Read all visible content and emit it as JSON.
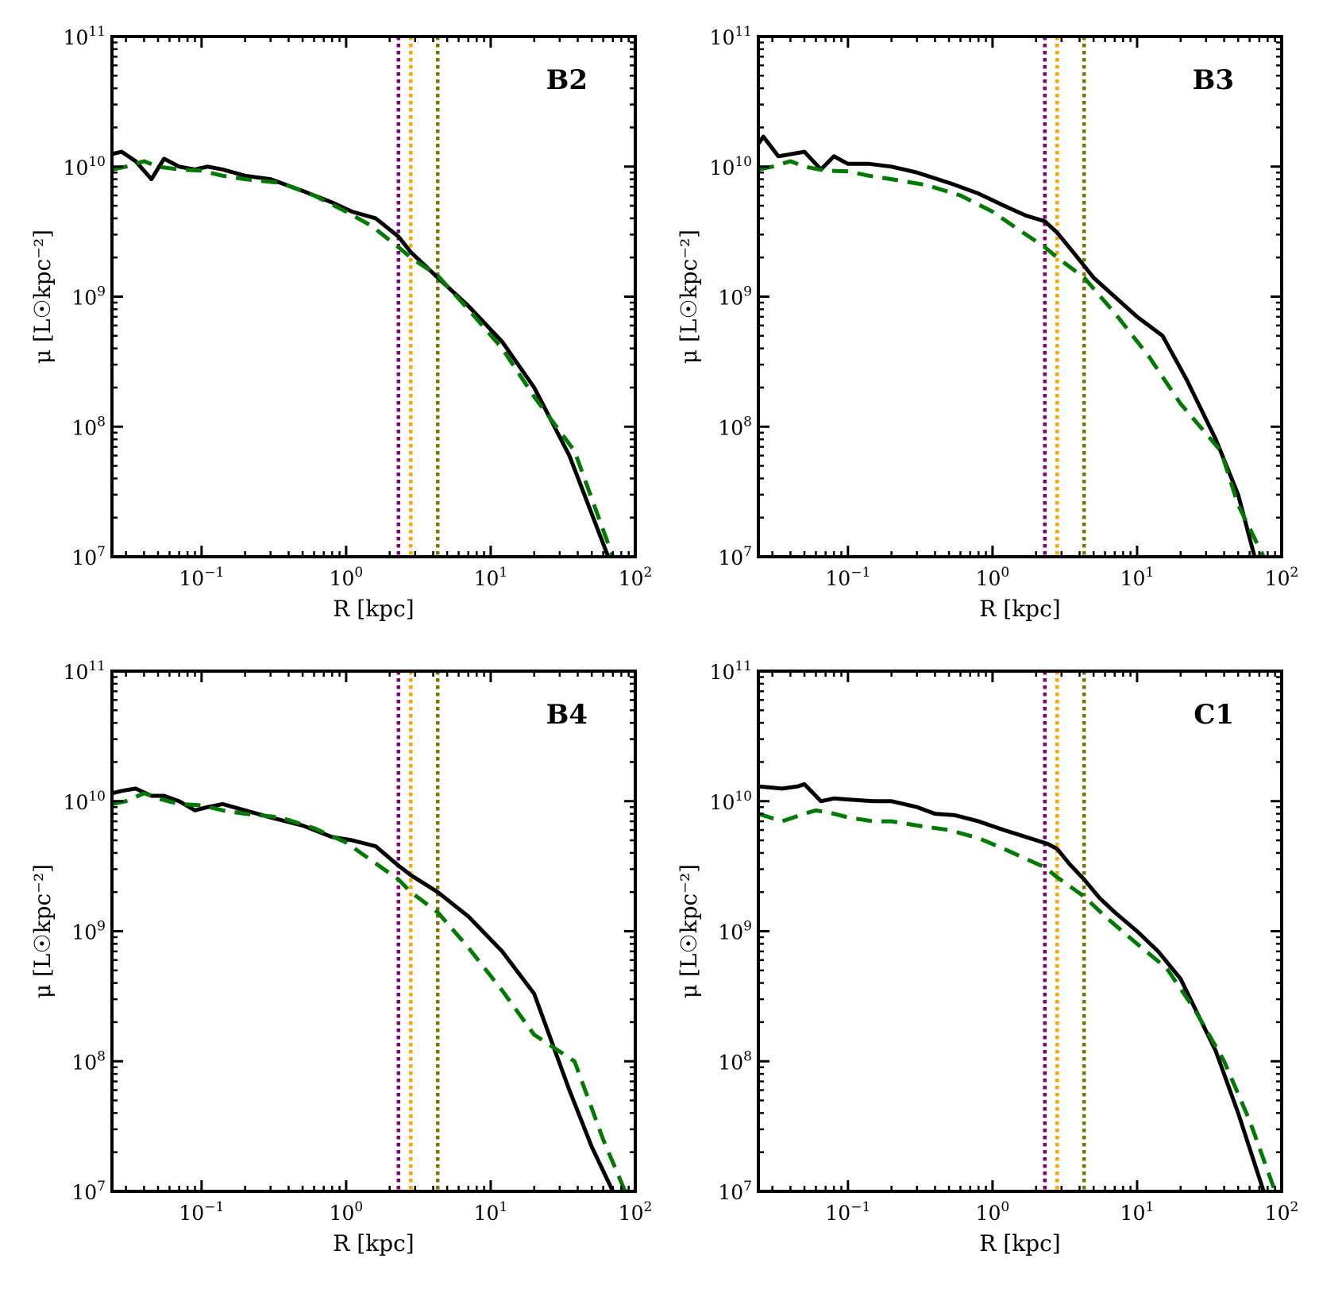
{
  "figure": {
    "colors": {
      "measured": "#000000",
      "model": "#007a00",
      "vline_1": "#800080",
      "vline_2": "#ffa500",
      "vline_3": "#7a7400"
    }
  },
  "chart_data": [
    {
      "type": "line",
      "panel": "B2",
      "xlabel": "R [kpc]",
      "ylabel": "μ [L☉kpc⁻²]",
      "xscale": "log",
      "yscale": "log",
      "xlim": [
        0.024,
        100
      ],
      "ylim": [
        10000000.0,
        100000000000.0
      ],
      "xticks": [
        "10⁻¹",
        "10⁰",
        "10¹",
        "10²"
      ],
      "yticks": [
        "10⁷",
        "10⁸",
        "10⁹",
        "10¹⁰",
        "10¹¹"
      ],
      "vlines": [
        2.3,
        2.8,
        4.3
      ],
      "series": [
        {
          "style": "solid",
          "x": [
            0.024,
            0.028,
            0.035,
            0.045,
            0.055,
            0.07,
            0.09,
            0.11,
            0.14,
            0.2,
            0.3,
            0.5,
            0.8,
            1.1,
            1.6,
            2.3,
            2.8,
            4.3,
            7,
            12,
            20,
            35,
            65
          ],
          "y": [
            12500000000.0,
            13000000000.0,
            11000000000.0,
            8000000000.0,
            11500000000.0,
            10000000000.0,
            9500000000.0,
            10000000000.0,
            9500000000.0,
            8500000000.0,
            8000000000.0,
            6500000000.0,
            5300000000.0,
            4500000000.0,
            4000000000.0,
            2900000000.0,
            2200000000.0,
            1400000000.0,
            850000000.0,
            450000000.0,
            200000000.0,
            60000000.0,
            10000000.0
          ]
        },
        {
          "style": "dashed",
          "x": [
            0.024,
            0.03,
            0.04,
            0.05,
            0.07,
            0.1,
            0.14,
            0.2,
            0.35,
            0.6,
            1.0,
            1.5,
            2.3,
            2.8,
            4.3,
            7,
            12,
            20,
            38,
            70
          ],
          "y": [
            9500000000.0,
            10000000000.0,
            11000000000.0,
            10000000000.0,
            9500000000.0,
            9300000000.0,
            8500000000.0,
            8000000000.0,
            7500000000.0,
            6000000000.0,
            4500000000.0,
            3500000000.0,
            2400000000.0,
            2000000000.0,
            1450000000.0,
            800000000.0,
            400000000.0,
            170000000.0,
            65000000.0,
            10000000.0
          ]
        }
      ]
    },
    {
      "type": "line",
      "panel": "B3",
      "xlabel": "R [kpc]",
      "ylabel": "μ [L☉kpc⁻²]",
      "xscale": "log",
      "yscale": "log",
      "xlim": [
        0.024,
        100
      ],
      "ylim": [
        10000000.0,
        100000000000.0
      ],
      "xticks": [
        "10⁻¹",
        "10⁰",
        "10¹",
        "10²"
      ],
      "yticks": [
        "10⁷",
        "10⁸",
        "10⁹",
        "10¹⁰",
        "10¹¹"
      ],
      "vlines": [
        2.3,
        2.8,
        4.3
      ],
      "series": [
        {
          "style": "solid",
          "x": [
            0.024,
            0.026,
            0.033,
            0.05,
            0.065,
            0.08,
            0.1,
            0.14,
            0.2,
            0.3,
            0.5,
            0.8,
            1.2,
            1.7,
            2.3,
            2.8,
            3.5,
            5,
            7,
            10,
            15,
            22,
            35,
            50,
            65
          ],
          "y": [
            15000000000.0,
            17000000000.0,
            12000000000.0,
            13000000000.0,
            9500000000.0,
            12000000000.0,
            10500000000.0,
            10500000000.0,
            10000000000.0,
            9000000000.0,
            7500000000.0,
            6200000000.0,
            5000000000.0,
            4200000000.0,
            3800000000.0,
            3100000000.0,
            2300000000.0,
            1400000000.0,
            1000000000.0,
            700000000.0,
            500000000.0,
            230000000.0,
            80000000.0,
            30000000.0,
            10000000.0
          ]
        },
        {
          "style": "dashed",
          "x": [
            0.024,
            0.03,
            0.04,
            0.05,
            0.07,
            0.1,
            0.14,
            0.2,
            0.35,
            0.6,
            1.0,
            1.5,
            2.3,
            2.8,
            4.3,
            7,
            12,
            20,
            38,
            50,
            75
          ],
          "y": [
            9500000000.0,
            10000000000.0,
            11000000000.0,
            10000000000.0,
            9300000000.0,
            9200000000.0,
            8500000000.0,
            8000000000.0,
            7200000000.0,
            6000000000.0,
            4500000000.0,
            3300000000.0,
            2400000000.0,
            2000000000.0,
            1400000000.0,
            750000000.0,
            350000000.0,
            150000000.0,
            65000000.0,
            25000000.0,
            10000000.0
          ]
        }
      ]
    },
    {
      "type": "line",
      "panel": "B4",
      "xlabel": "R [kpc]",
      "ylabel": "μ [L☉kpc⁻²]",
      "xscale": "log",
      "yscale": "log",
      "xlim": [
        0.024,
        100
      ],
      "ylim": [
        10000000.0,
        100000000000.0
      ],
      "xticks": [
        "10⁻¹",
        "10⁰",
        "10¹",
        "10²"
      ],
      "yticks": [
        "10⁷",
        "10⁸",
        "10⁹",
        "10¹⁰",
        "10¹¹"
      ],
      "vlines": [
        2.3,
        2.8,
        4.3
      ],
      "series": [
        {
          "style": "solid",
          "x": [
            0.024,
            0.028,
            0.035,
            0.045,
            0.055,
            0.07,
            0.09,
            0.11,
            0.14,
            0.2,
            0.3,
            0.5,
            0.8,
            1.1,
            1.6,
            2.3,
            2.8,
            4.3,
            7,
            12,
            20,
            35,
            50,
            70
          ],
          "y": [
            11500000000.0,
            12000000000.0,
            12500000000.0,
            11000000000.0,
            11000000000.0,
            10000000000.0,
            8500000000.0,
            9000000000.0,
            9500000000.0,
            8500000000.0,
            7500000000.0,
            6500000000.0,
            5300000000.0,
            5000000000.0,
            4500000000.0,
            3200000000.0,
            2700000000.0,
            2000000000.0,
            1300000000.0,
            700000000.0,
            330000000.0,
            60000000.0,
            22000000.0,
            10000000.0
          ]
        },
        {
          "style": "dashed",
          "x": [
            0.024,
            0.03,
            0.04,
            0.05,
            0.07,
            0.1,
            0.14,
            0.2,
            0.35,
            0.6,
            1.0,
            1.5,
            2.3,
            2.8,
            4.3,
            7,
            12,
            20,
            38,
            60,
            85
          ],
          "y": [
            9500000000.0,
            10000000000.0,
            11500000000.0,
            10500000000.0,
            9500000000.0,
            9300000000.0,
            8500000000.0,
            8000000000.0,
            7500000000.0,
            6200000000.0,
            4800000000.0,
            3500000000.0,
            2500000000.0,
            2000000000.0,
            1400000000.0,
            750000000.0,
            350000000.0,
            160000000.0,
            100000000.0,
            25000000.0,
            10000000.0
          ]
        }
      ]
    },
    {
      "type": "line",
      "panel": "C1",
      "xlabel": "R [kpc]",
      "ylabel": "μ [L☉kpc⁻²]",
      "xscale": "log",
      "yscale": "log",
      "xlim": [
        0.024,
        100
      ],
      "ylim": [
        10000000.0,
        100000000000.0
      ],
      "xticks": [
        "10⁻¹",
        "10⁰",
        "10¹",
        "10²"
      ],
      "yticks": [
        "10⁷",
        "10⁸",
        "10⁹",
        "10¹⁰",
        "10¹¹"
      ],
      "vlines": [
        2.3,
        2.8,
        4.3
      ],
      "series": [
        {
          "style": "solid",
          "x": [
            0.024,
            0.035,
            0.045,
            0.05,
            0.065,
            0.08,
            0.1,
            0.15,
            0.2,
            0.3,
            0.4,
            0.55,
            0.8,
            1.2,
            1.8,
            2.4,
            2.8,
            3.4,
            4.3,
            5.5,
            7,
            10,
            14,
            20,
            35,
            50,
            75
          ],
          "y": [
            13000000000.0,
            12500000000.0,
            13000000000.0,
            13500000000.0,
            10000000000.0,
            10500000000.0,
            10300000000.0,
            10000000000.0,
            10000000000.0,
            9000000000.0,
            8000000000.0,
            7800000000.0,
            7000000000.0,
            6000000000.0,
            5200000000.0,
            4700000000.0,
            4300000000.0,
            3300000000.0,
            2500000000.0,
            1800000000.0,
            1400000000.0,
            1000000000.0,
            700000000.0,
            430000000.0,
            120000000.0,
            40000000.0,
            10000000.0
          ]
        },
        {
          "style": "dashed",
          "x": [
            0.024,
            0.035,
            0.05,
            0.06,
            0.08,
            0.1,
            0.15,
            0.2,
            0.3,
            0.5,
            0.8,
            1.2,
            1.8,
            2.3,
            2.8,
            4.3,
            6,
            10,
            16,
            25,
            40,
            60,
            90
          ],
          "y": [
            8000000000.0,
            7000000000.0,
            8000000000.0,
            8500000000.0,
            8000000000.0,
            7500000000.0,
            7000000000.0,
            7000000000.0,
            6500000000.0,
            6000000000.0,
            5200000000.0,
            4300000000.0,
            3500000000.0,
            3100000000.0,
            2600000000.0,
            1850000000.0,
            1300000000.0,
            800000000.0,
            520000000.0,
            250000000.0,
            100000000.0,
            35000000.0,
            10000000.0
          ]
        }
      ]
    }
  ]
}
